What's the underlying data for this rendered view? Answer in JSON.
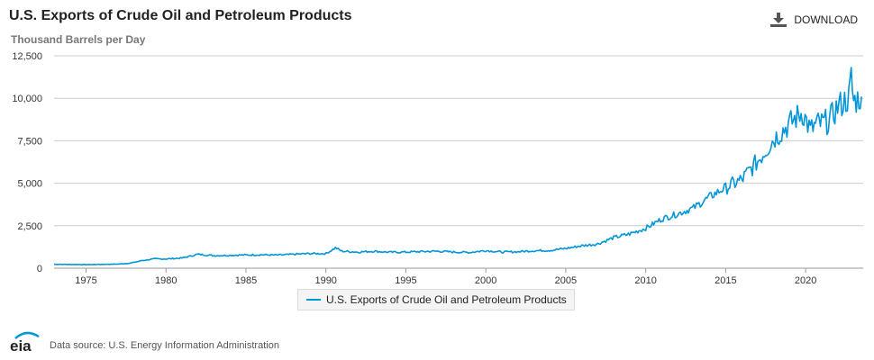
{
  "header": {
    "title": "U.S. Exports of Crude Oil and Petroleum Products",
    "subtitle": "Thousand Barrels per Day",
    "download_label": "DOWNLOAD",
    "download_icon": "download-icon"
  },
  "footer": {
    "logo_text": "eia",
    "source": "Data source: U.S. Energy Information Administration"
  },
  "colors": {
    "series": "#0096d7",
    "grid": "#cccccc",
    "axis": "#999999"
  },
  "chart_data": {
    "type": "line",
    "title": "U.S. Exports of Crude Oil and Petroleum Products",
    "ylabel": "Thousand Barrels per Day",
    "xlabel": "",
    "xlim": [
      1973,
      2023.6
    ],
    "ylim": [
      0,
      12500
    ],
    "y_ticks": [
      0,
      2500,
      5000,
      7500,
      10000,
      12500
    ],
    "y_tick_labels": [
      "0",
      "2,500",
      "5,000",
      "7,500",
      "10,000",
      "12,500"
    ],
    "x_ticks": [
      1975,
      1980,
      1985,
      1990,
      1995,
      2000,
      2005,
      2010,
      2015,
      2020
    ],
    "x_tick_labels": [
      "1975",
      "1980",
      "1985",
      "1990",
      "1995",
      "2000",
      "2005",
      "2010",
      "2015",
      "2020"
    ],
    "grid": "horizontal",
    "legend_position": "bottom-center",
    "series": [
      {
        "name": "U.S. Exports of Crude Oil and Petroleum Products",
        "x": [
          1973,
          1974,
          1975,
          1976,
          1977,
          1977.8,
          1978.5,
          1979.3,
          1980,
          1981,
          1982,
          1983,
          1984,
          1985,
          1986,
          1987,
          1988,
          1989,
          1990,
          1990.6,
          1991,
          1992,
          1993,
          1994,
          1995,
          1996,
          1997,
          1998,
          1999,
          2000,
          2001,
          2002,
          2003,
          2004,
          2005,
          2006,
          2007,
          2008,
          2009,
          2010,
          2011,
          2012,
          2013,
          2014,
          2015,
          2016,
          2017,
          2018,
          2019,
          2019.8,
          2020.3,
          2020.7,
          2021,
          2021.5,
          2022,
          2022.7,
          2022.85,
          2023,
          2023.5
        ],
        "y": [
          230,
          220,
          210,
          225,
          240,
          300,
          450,
          550,
          545,
          600,
          820,
          740,
          760,
          780,
          790,
          770,
          820,
          860,
          860,
          1200,
          1000,
          950,
          1000,
          940,
          950,
          980,
          1000,
          950,
          930,
          1040,
          950,
          970,
          1030,
          1050,
          1160,
          1320,
          1430,
          1800,
          2020,
          2350,
          2900,
          3200,
          3550,
          4200,
          4750,
          5200,
          6300,
          7600,
          8500,
          9200,
          8100,
          8500,
          8500,
          8700,
          9500,
          10000,
          11200,
          9800,
          10100
        ]
      }
    ]
  }
}
